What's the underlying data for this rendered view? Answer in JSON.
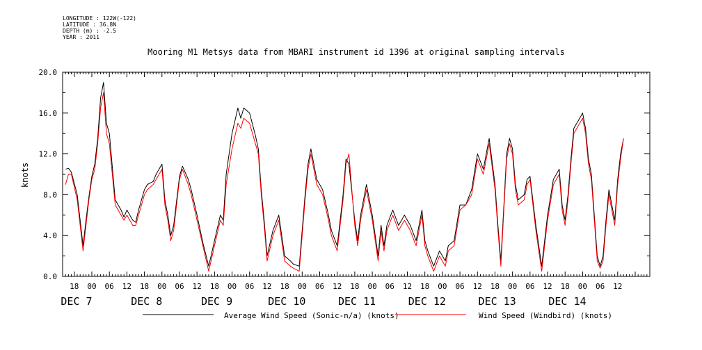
{
  "header": {
    "longitude": "LONGITUDE : 122W(-122)",
    "latitude": "LATITUDE : 36.8N",
    "depth": "DEPTH (m) : -2.5",
    "year": "YEAR : 2011"
  },
  "chart_data": {
    "type": "line",
    "title": "Mooring M1 Metsys data from MBARI instrument id 1396 at original sampling intervals",
    "ylabel": "knots",
    "ylim": [
      0,
      20
    ],
    "yticks": [
      "0.0",
      "4.0",
      "8.0",
      "12.0",
      "16.0",
      "20.0"
    ],
    "xlim": [
      "2011-12-06T14:00",
      "2011-12-14T23:00"
    ],
    "x_hour_ticks": [
      "18",
      "00",
      "06",
      "12",
      "18",
      "00",
      "06",
      "12",
      "18",
      "00",
      "06",
      "12",
      "18",
      "00",
      "06",
      "12",
      "18",
      "00",
      "06",
      "12",
      "18",
      "00",
      "06",
      "12",
      "18",
      "00",
      "06",
      "12",
      "18",
      "00",
      "06",
      "12",
      "18",
      "00",
      "06",
      "12"
    ],
    "x_day_labels": [
      "DEC  7",
      "DEC  8",
      "DEC  9",
      "DEC 10",
      "DEC 11",
      "DEC 12",
      "DEC 13",
      "DEC 14"
    ],
    "grid": false,
    "legend_position": "bottom",
    "series": [
      {
        "name": "Average Wind Speed (Sonic-n/a) (knots)",
        "color": "#000000",
        "x": [
          "2011-12-06T15:00",
          "2011-12-06T16:00",
          "2011-12-06T17:00",
          "2011-12-06T19:00",
          "2011-12-06T21:00",
          "2011-12-06T22:00",
          "2011-12-06T23:00",
          "2011-12-07T00:00",
          "2011-12-07T01:00",
          "2011-12-07T02:00",
          "2011-12-07T03:00",
          "2011-12-07T04:00",
          "2011-12-07T05:00",
          "2011-12-07T06:00",
          "2011-12-07T08:00",
          "2011-12-07T10:00",
          "2011-12-07T11:00",
          "2011-12-07T12:00",
          "2011-12-07T14:00",
          "2011-12-07T15:00",
          "2011-12-07T16:00",
          "2011-12-07T18:00",
          "2011-12-07T19:00",
          "2011-12-07T21:00",
          "2011-12-07T22:00",
          "2011-12-08T00:00",
          "2011-12-08T01:00",
          "2011-12-08T02:00",
          "2011-12-08T03:00",
          "2011-12-08T04:00",
          "2011-12-08T06:00",
          "2011-12-08T07:00",
          "2011-12-08T09:00",
          "2011-12-08T10:00",
          "2011-12-08T12:00",
          "2011-12-08T14:00",
          "2011-12-08T16:00",
          "2011-12-08T18:00",
          "2011-12-08T20:00",
          "2011-12-08T21:00",
          "2011-12-08T22:00",
          "2011-12-09T00:00",
          "2011-12-09T02:00",
          "2011-12-09T03:00",
          "2011-12-09T04:00",
          "2011-12-09T06:00",
          "2011-12-09T08:00",
          "2011-12-09T09:00",
          "2011-12-09T10:00",
          "2011-12-09T11:00",
          "2011-12-09T12:00",
          "2011-12-09T14:00",
          "2011-12-09T16:00",
          "2011-12-09T18:00",
          "2011-12-09T20:00",
          "2011-12-09T21:00",
          "2011-12-09T23:00",
          "2011-12-10T01:00",
          "2011-12-10T02:00",
          "2011-12-10T03:00",
          "2011-12-10T04:00",
          "2011-12-10T05:00",
          "2011-12-10T07:00",
          "2011-12-10T09:00",
          "2011-12-10T10:00",
          "2011-12-10T12:00",
          "2011-12-10T14:00",
          "2011-12-10T15:00",
          "2011-12-10T16:00",
          "2011-12-10T18:00",
          "2011-12-10T19:00",
          "2011-12-10T20:00",
          "2011-12-10T22:00",
          "2011-12-11T00:00",
          "2011-12-11T02:00",
          "2011-12-11T03:00",
          "2011-12-11T04:00",
          "2011-12-11T05:00",
          "2011-12-11T07:00",
          "2011-12-11T09:00",
          "2011-12-11T11:00",
          "2011-12-11T13:00",
          "2011-12-11T15:00",
          "2011-12-11T17:00",
          "2011-12-11T18:00",
          "2011-12-11T19:00",
          "2011-12-11T21:00",
          "2011-12-11T23:00",
          "2011-12-12T01:00",
          "2011-12-12T02:00",
          "2011-12-12T04:00",
          "2011-12-12T06:00",
          "2011-12-12T08:00",
          "2011-12-12T10:00",
          "2011-12-12T12:00",
          "2011-12-12T14:00",
          "2011-12-12T16:00",
          "2011-12-12T18:00",
          "2011-12-12T19:00",
          "2011-12-12T20:00",
          "2011-12-12T22:00",
          "2011-12-12T23:00",
          "2011-12-13T00:00",
          "2011-12-13T01:00",
          "2011-12-13T02:00",
          "2011-12-13T04:00",
          "2011-12-13T05:00",
          "2011-12-13T06:00",
          "2011-12-13T08:00",
          "2011-12-13T10:00",
          "2011-12-13T12:00",
          "2011-12-13T14:00",
          "2011-12-13T16:00",
          "2011-12-13T17:00",
          "2011-12-13T18:00",
          "2011-12-13T19:00",
          "2011-12-13T20:00",
          "2011-12-13T21:00",
          "2011-12-13T23:00",
          "2011-12-14T00:00",
          "2011-12-14T01:00",
          "2011-12-14T02:00",
          "2011-12-14T03:00",
          "2011-12-14T05:00",
          "2011-12-14T06:00",
          "2011-12-14T07:00",
          "2011-12-14T08:00",
          "2011-12-14T09:00",
          "2011-12-14T10:00",
          "2011-12-14T11:00",
          "2011-12-14T12:00",
          "2011-12-14T13:00",
          "2011-12-14T14:00"
        ],
        "values": [
          10.5,
          10.6,
          10.2,
          8.0,
          3.0,
          5.5,
          7.8,
          9.8,
          11.0,
          13.5,
          17.5,
          19.0,
          15.0,
          14.0,
          7.5,
          6.5,
          5.8,
          6.5,
          5.5,
          5.3,
          6.5,
          8.5,
          9.0,
          9.3,
          10.0,
          11.0,
          7.5,
          6.0,
          4.0,
          5.0,
          9.8,
          10.8,
          9.5,
          8.5,
          6.0,
          3.3,
          1.0,
          3.5,
          6.0,
          5.5,
          10.0,
          14.0,
          16.5,
          15.5,
          16.5,
          16.0,
          13.8,
          12.5,
          8.5,
          5.5,
          2.0,
          4.5,
          6.0,
          2.0,
          1.5,
          1.2,
          1.0,
          8.0,
          11.0,
          12.5,
          11.0,
          9.5,
          8.5,
          6.0,
          4.5,
          3.0,
          8.0,
          11.5,
          11.0,
          5.5,
          3.5,
          6.0,
          9.0,
          6.0,
          2.0,
          5.0,
          3.0,
          5.0,
          6.5,
          5.0,
          6.0,
          5.0,
          3.5,
          6.5,
          3.5,
          2.5,
          1.0,
          2.5,
          1.5,
          3.0,
          3.5,
          7.0,
          7.0,
          8.5,
          12.0,
          10.5,
          13.5,
          9.0,
          5.0,
          1.5,
          12.0,
          13.5,
          12.5,
          9.0,
          7.5,
          8.0,
          9.5,
          9.8,
          5.0,
          1.0,
          6.0,
          9.5,
          10.5,
          7.0,
          5.5,
          8.0,
          11.5,
          14.5,
          15.5,
          16.0,
          14.5,
          11.5,
          10.0,
          2.0,
          1.0,
          2.0,
          5.5,
          8.5,
          7.0,
          5.5,
          9.5,
          12.0,
          13.5
        ],
        "note_on_sampling": ""
      },
      {
        "name": "Wind Speed (Windbird) (knots)",
        "color": "#ff0000",
        "x": [
          "2011-12-06T15:00",
          "2011-12-06T16:00",
          "2011-12-06T17:00",
          "2011-12-06T19:00",
          "2011-12-06T21:00",
          "2011-12-06T22:00",
          "2011-12-06T23:00",
          "2011-12-07T00:00",
          "2011-12-07T01:00",
          "2011-12-07T02:00",
          "2011-12-07T03:00",
          "2011-12-07T04:00",
          "2011-12-07T05:00",
          "2011-12-07T06:00",
          "2011-12-07T08:00",
          "2011-12-07T10:00",
          "2011-12-07T11:00",
          "2011-12-07T12:00",
          "2011-12-07T14:00",
          "2011-12-07T15:00",
          "2011-12-07T16:00",
          "2011-12-07T18:00",
          "2011-12-07T19:00",
          "2011-12-07T21:00",
          "2011-12-07T22:00",
          "2011-12-08T00:00",
          "2011-12-08T01:00",
          "2011-12-08T02:00",
          "2011-12-08T03:00",
          "2011-12-08T04:00",
          "2011-12-08T06:00",
          "2011-12-08T07:00",
          "2011-12-08T09:00",
          "2011-12-08T10:00",
          "2011-12-08T12:00",
          "2011-12-08T14:00",
          "2011-12-08T16:00",
          "2011-12-08T18:00",
          "2011-12-08T20:00",
          "2011-12-08T21:00",
          "2011-12-08T22:00",
          "2011-12-09T00:00",
          "2011-12-09T02:00",
          "2011-12-09T03:00",
          "2011-12-09T04:00",
          "2011-12-09T06:00",
          "2011-12-09T08:00",
          "2011-12-09T09:00",
          "2011-12-09T10:00",
          "2011-12-09T11:00",
          "2011-12-09T12:00",
          "2011-12-09T14:00",
          "2011-12-09T16:00",
          "2011-12-09T18:00",
          "2011-12-09T20:00",
          "2011-12-09T21:00",
          "2011-12-09T23:00",
          "2011-12-10T01:00",
          "2011-12-10T02:00",
          "2011-12-10T03:00",
          "2011-12-10T04:00",
          "2011-12-10T05:00",
          "2011-12-10T07:00",
          "2011-12-10T09:00",
          "2011-12-10T10:00",
          "2011-12-10T12:00",
          "2011-12-10T14:00",
          "2011-12-10T15:00",
          "2011-12-10T16:00",
          "2011-12-10T18:00",
          "2011-12-10T19:00",
          "2011-12-10T20:00",
          "2011-12-10T22:00",
          "2011-12-11T00:00",
          "2011-12-11T02:00",
          "2011-12-11T03:00",
          "2011-12-11T04:00",
          "2011-12-11T05:00",
          "2011-12-11T07:00",
          "2011-12-11T09:00",
          "2011-12-11T11:00",
          "2011-12-11T13:00",
          "2011-12-11T15:00",
          "2011-12-11T17:00",
          "2011-12-11T18:00",
          "2011-12-11T19:00",
          "2011-12-11T21:00",
          "2011-12-11T23:00",
          "2011-12-12T01:00",
          "2011-12-12T02:00",
          "2011-12-12T04:00",
          "2011-12-12T06:00",
          "2011-12-12T08:00",
          "2011-12-12T10:00",
          "2011-12-12T12:00",
          "2011-12-12T14:00",
          "2011-12-12T16:00",
          "2011-12-12T18:00",
          "2011-12-12T19:00",
          "2011-12-12T20:00",
          "2011-12-12T22:00",
          "2011-12-12T23:00",
          "2011-12-13T00:00",
          "2011-12-13T01:00",
          "2011-12-13T02:00",
          "2011-12-13T04:00",
          "2011-12-13T05:00",
          "2011-12-13T06:00",
          "2011-12-13T08:00",
          "2011-12-13T10:00",
          "2011-12-13T12:00",
          "2011-12-13T14:00",
          "2011-12-13T16:00",
          "2011-12-13T17:00",
          "2011-12-13T18:00",
          "2011-12-13T19:00",
          "2011-12-13T20:00",
          "2011-12-13T21:00",
          "2011-12-13T23:00",
          "2011-12-14T00:00",
          "2011-12-14T01:00",
          "2011-12-14T02:00",
          "2011-12-14T03:00",
          "2011-12-14T05:00",
          "2011-12-14T06:00",
          "2011-12-14T07:00",
          "2011-12-14T08:00",
          "2011-12-14T09:00",
          "2011-12-14T10:00",
          "2011-12-14T11:00",
          "2011-12-14T12:00",
          "2011-12-14T13:00",
          "2011-12-14T14:00"
        ],
        "values": [
          9.0,
          10.0,
          10.0,
          7.5,
          2.5,
          5.0,
          7.5,
          9.5,
          10.5,
          13.0,
          16.5,
          18.0,
          14.0,
          13.0,
          7.0,
          6.0,
          5.5,
          6.0,
          5.0,
          5.0,
          6.0,
          8.0,
          8.5,
          9.0,
          9.5,
          10.5,
          7.0,
          5.5,
          3.5,
          4.5,
          9.5,
          10.5,
          9.0,
          8.0,
          5.5,
          3.0,
          0.5,
          3.0,
          5.5,
          5.0,
          9.0,
          12.5,
          15.0,
          14.5,
          15.5,
          15.0,
          13.0,
          12.0,
          8.0,
          5.0,
          1.5,
          4.0,
          5.5,
          1.5,
          1.0,
          0.8,
          0.5,
          7.5,
          10.5,
          12.0,
          10.5,
          9.0,
          8.0,
          5.5,
          4.0,
          2.5,
          7.5,
          11.0,
          12.0,
          5.0,
          3.0,
          5.5,
          8.5,
          5.5,
          1.5,
          4.5,
          2.5,
          4.5,
          6.0,
          4.5,
          5.5,
          4.5,
          3.0,
          6.0,
          3.0,
          2.0,
          0.5,
          2.0,
          1.0,
          2.5,
          3.0,
          6.5,
          7.0,
          8.0,
          11.5,
          10.0,
          13.0,
          8.5,
          4.5,
          1.0,
          11.5,
          13.0,
          12.0,
          8.5,
          7.0,
          7.5,
          9.0,
          9.5,
          4.5,
          0.5,
          5.5,
          9.0,
          10.0,
          6.5,
          5.0,
          7.5,
          11.0,
          14.0,
          15.0,
          15.5,
          14.0,
          11.0,
          9.5,
          1.5,
          0.8,
          1.5,
          5.0,
          8.0,
          6.5,
          5.0,
          9.0,
          11.5,
          13.5
        ],
        "note_on_sampling": ""
      }
    ]
  }
}
